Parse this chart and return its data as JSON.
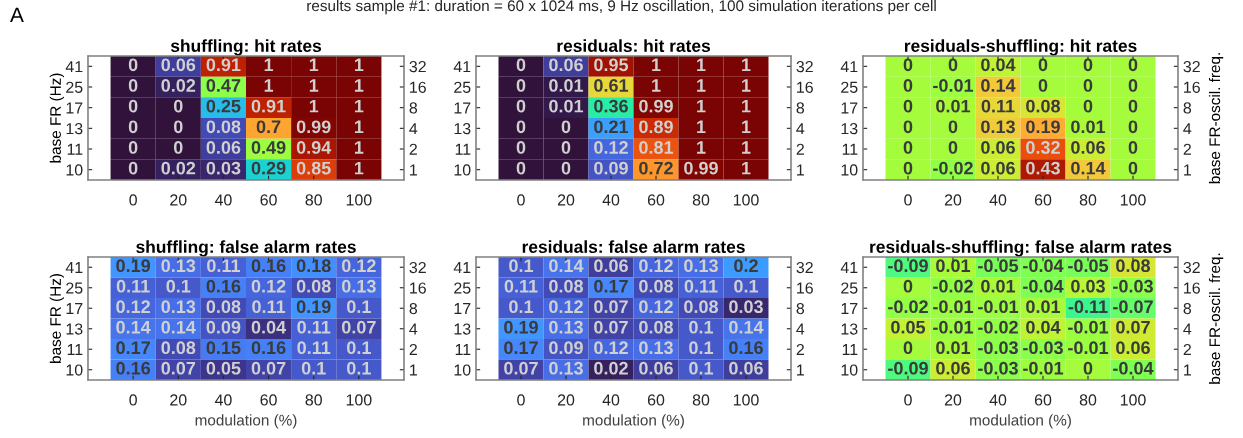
{
  "chart_data": [
    {
      "type": "heatmap",
      "title": "shuffling: hit rates",
      "ylabel": "base FR (Hz)",
      "annotations": [
        "A",
        "results sample #1: duration = 60 x 1024 ms, 9 Hz oscillation, 100 simulation iterations per cell"
      ],
      "categories": [
        "0",
        "20",
        "40",
        "60",
        "80",
        "100"
      ],
      "y_categories": [
        "41",
        "25",
        "17",
        "13",
        "11",
        "10"
      ],
      "y2_categories": [
        "32",
        "16",
        "8",
        "4",
        "2",
        "1"
      ],
      "data_labels": true,
      "cells": [
        [
          0,
          0.06,
          0.91,
          1,
          1,
          1
        ],
        [
          0,
          0.02,
          0.47,
          1,
          1,
          1
        ],
        [
          0,
          0,
          0.25,
          0.91,
          1,
          1
        ],
        [
          0,
          0,
          0.08,
          0.7,
          0.99,
          1
        ],
        [
          0,
          0,
          0.06,
          0.49,
          0.94,
          1
        ],
        [
          0,
          0.02,
          0.03,
          0.29,
          0.85,
          1
        ]
      ]
    },
    {
      "type": "heatmap",
      "title": "residuals: hit rates",
      "categories": [
        "0",
        "20",
        "40",
        "60",
        "80",
        "100"
      ],
      "y_categories": [
        "41",
        "25",
        "17",
        "13",
        "11",
        "10"
      ],
      "y2_categories": [
        "32",
        "16",
        "8",
        "4",
        "2",
        "1"
      ],
      "data_labels": true,
      "cells": [
        [
          0,
          0.06,
          0.95,
          1,
          1,
          1
        ],
        [
          0,
          0.01,
          0.61,
          1,
          1,
          1
        ],
        [
          0,
          0.01,
          0.36,
          0.99,
          1,
          1
        ],
        [
          0,
          0,
          0.21,
          0.89,
          1,
          1
        ],
        [
          0,
          0,
          0.12,
          0.81,
          1,
          1
        ],
        [
          0,
          0,
          0.09,
          0.72,
          0.99,
          1
        ]
      ]
    },
    {
      "type": "heatmap",
      "title": "residuals-shuffling: hit rates",
      "y2label": "base FR-oscil. freq.",
      "categories": [
        "0",
        "20",
        "40",
        "60",
        "80",
        "100"
      ],
      "y_categories": [
        "41",
        "25",
        "17",
        "13",
        "11",
        "10"
      ],
      "y2_categories": [
        "32",
        "16",
        "8",
        "4",
        "2",
        "1"
      ],
      "data_labels": true,
      "cells": [
        [
          0,
          0,
          0.04,
          0,
          0,
          0
        ],
        [
          0,
          -0.01,
          0.14,
          0,
          0,
          0
        ],
        [
          0,
          0.01,
          0.11,
          0.08,
          0,
          0
        ],
        [
          0,
          0,
          0.13,
          0.19,
          0.01,
          0
        ],
        [
          0,
          0,
          0.06,
          0.32,
          0.06,
          0
        ],
        [
          0,
          -0.02,
          0.06,
          0.43,
          0.14,
          0
        ]
      ]
    },
    {
      "type": "heatmap",
      "title": "shuffling: false alarm rates",
      "ylabel": "base FR (Hz)",
      "xlabel": "modulation (%)",
      "categories": [
        "0",
        "20",
        "40",
        "60",
        "80",
        "100"
      ],
      "y_categories": [
        "41",
        "25",
        "17",
        "13",
        "11",
        "10"
      ],
      "y2_categories": [
        "32",
        "16",
        "8",
        "4",
        "2",
        "1"
      ],
      "data_labels": true,
      "cells": [
        [
          0.19,
          0.13,
          0.11,
          0.16,
          0.18,
          0.12
        ],
        [
          0.11,
          0.1,
          0.16,
          0.12,
          0.08,
          0.13
        ],
        [
          0.12,
          0.13,
          0.08,
          0.11,
          0.19,
          0.1
        ],
        [
          0.14,
          0.14,
          0.09,
          0.04,
          0.11,
          0.07
        ],
        [
          0.17,
          0.08,
          0.15,
          0.16,
          0.11,
          0.1
        ],
        [
          0.16,
          0.07,
          0.05,
          0.07,
          0.1,
          0.1
        ]
      ]
    },
    {
      "type": "heatmap",
      "title": "residuals: false alarm rates",
      "xlabel": "modulation (%)",
      "categories": [
        "0",
        "20",
        "40",
        "60",
        "80",
        "100"
      ],
      "y_categories": [
        "41",
        "25",
        "17",
        "13",
        "11",
        "10"
      ],
      "y2_categories": [
        "32",
        "16",
        "8",
        "4",
        "2",
        "1"
      ],
      "data_labels": true,
      "cells": [
        [
          0.1,
          0.14,
          0.06,
          0.12,
          0.13,
          0.2
        ],
        [
          0.11,
          0.08,
          0.17,
          0.08,
          0.11,
          0.1
        ],
        [
          0.1,
          0.12,
          0.07,
          0.12,
          0.08,
          0.03
        ],
        [
          0.19,
          0.13,
          0.07,
          0.08,
          0.1,
          0.14
        ],
        [
          0.17,
          0.09,
          0.12,
          0.13,
          0.1,
          0.16
        ],
        [
          0.07,
          0.13,
          0.02,
          0.06,
          0.1,
          0.06
        ]
      ]
    },
    {
      "type": "heatmap",
      "title": "residuals-shuffling: false alarm rates",
      "xlabel": "modulation (%)",
      "y2label": "base FR-oscil. freq.",
      "categories": [
        "0",
        "20",
        "40",
        "60",
        "80",
        "100"
      ],
      "y_categories": [
        "41",
        "25",
        "17",
        "13",
        "11",
        "10"
      ],
      "y2_categories": [
        "32",
        "16",
        "8",
        "4",
        "2",
        "1"
      ],
      "data_labels": true,
      "cells": [
        [
          -0.09,
          0.01,
          -0.05,
          -0.04,
          -0.05,
          0.08
        ],
        [
          0,
          -0.02,
          0.01,
          -0.04,
          0.03,
          -0.03
        ],
        [
          -0.02,
          -0.01,
          -0.01,
          0.01,
          -0.11,
          -0.07
        ],
        [
          0.05,
          -0.01,
          -0.02,
          0.04,
          -0.01,
          0.07
        ],
        [
          0,
          0.01,
          -0.03,
          -0.03,
          -0.01,
          0.06
        ],
        [
          -0.09,
          0.06,
          -0.03,
          -0.01,
          0,
          -0.04
        ]
      ]
    }
  ]
}
